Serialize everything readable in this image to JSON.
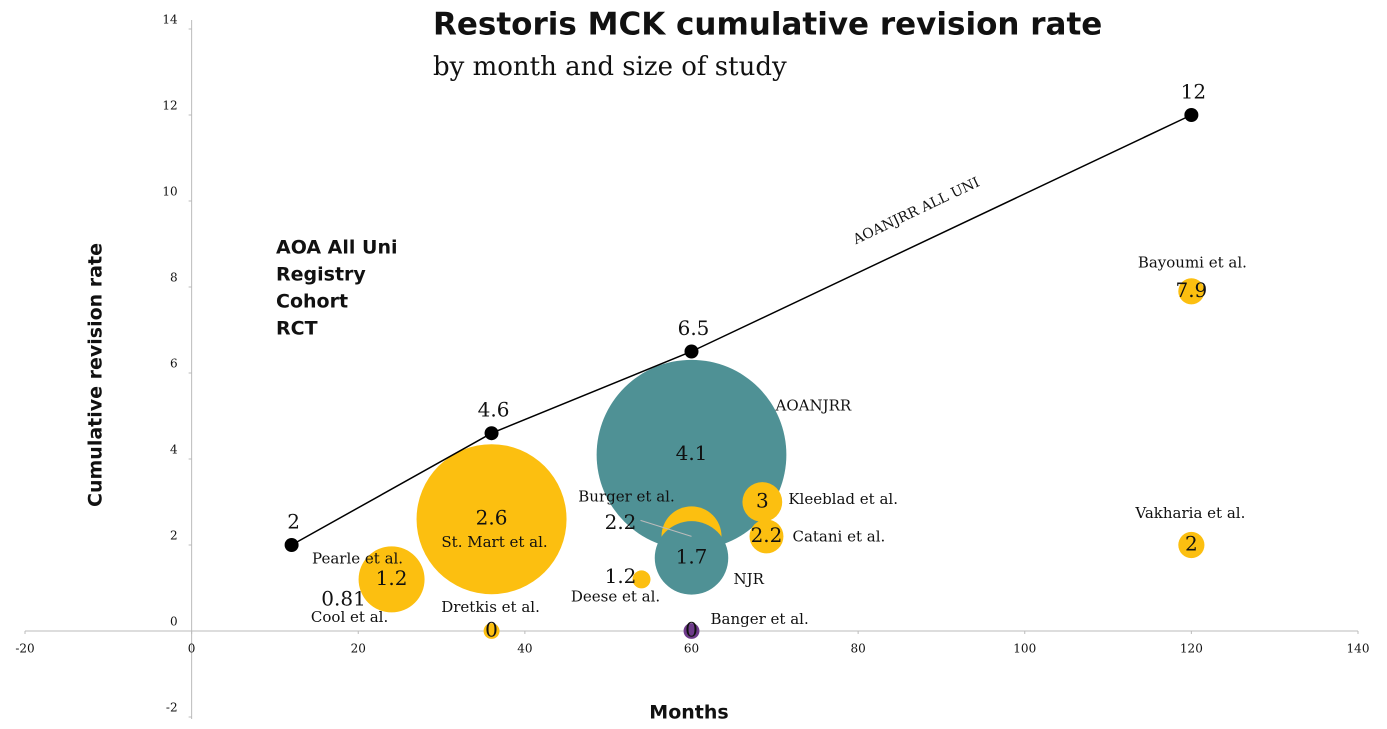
{
  "chart_data": {
    "type": "bubble",
    "title": "Restoris MCK cumulative revision rate",
    "subtitle": "by month and size of study",
    "x_label": "Months",
    "y_label": "Cumulative revision rate",
    "xlim": [
      -20,
      140
    ],
    "xticks": [
      -20,
      0,
      20,
      40,
      60,
      80,
      100,
      120,
      140
    ],
    "ylim": [
      -2,
      14
    ],
    "yticks": [
      -2,
      0,
      2,
      4,
      6,
      8,
      10,
      12,
      14
    ],
    "legend": "upper left",
    "series": [
      {
        "name": "AOA All Uni",
        "type": "line",
        "color": "#000000",
        "line_label": "AOANJRR ALL UNI",
        "x": [
          12,
          36,
          60,
          120
        ],
        "values": [
          2,
          4.6,
          6.5,
          12
        ]
      },
      {
        "name": "Registry",
        "color": "#4f9195",
        "x": [
          60,
          60
        ],
        "values": [
          4.1,
          1.7
        ],
        "sizes": [
          1000,
          150
        ],
        "labels": [
          "AOANJRR",
          "NJR"
        ]
      },
      {
        "name": "Cohort",
        "color": "#fcbf10",
        "x": [
          60,
          54,
          68.5,
          69,
          120,
          120,
          36,
          24,
          24,
          36
        ],
        "values": [
          2.2,
          1.2,
          3,
          2.2,
          7.9,
          2,
          2.6,
          1.2,
          0.81,
          0
        ],
        "sizes": [
          100,
          9,
          44,
          32,
          19,
          19,
          625,
          121,
          10,
          7
        ],
        "labels": [
          "Burger et al.",
          "Deese et al.",
          "Kleeblad et al.",
          "Catani et al.",
          "Bayoumi et al.",
          "Vakharia et al.",
          "St. Mart et al.",
          "Pearle et al.",
          "Cool et al.",
          "Dretkis et al."
        ]
      },
      {
        "name": "RCT",
        "color": "#6e3b8a",
        "x": [
          60
        ],
        "values": [
          0
        ],
        "sizes": [
          7
        ],
        "labels": [
          "Banger et al."
        ]
      }
    ]
  }
}
